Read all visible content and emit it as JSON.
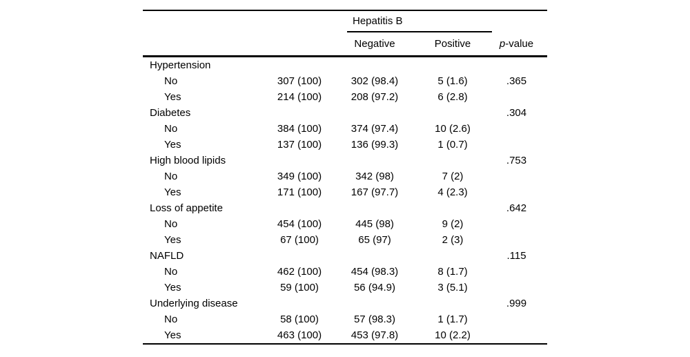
{
  "table": {
    "group_header": "Hepatitis B",
    "col_headers": {
      "negative": "Negative",
      "positive": "Positive"
    },
    "p_header": {
      "italic": "p",
      "rest": "-value"
    },
    "rows": [
      {
        "label": "Hypertension",
        "indent": false,
        "total": "",
        "negative": "",
        "positive": "",
        "p": ""
      },
      {
        "label": "No",
        "indent": true,
        "total": "307 (100)",
        "negative": "302 (98.4)",
        "positive": "5 (1.6)",
        "p": ".365"
      },
      {
        "label": "Yes",
        "indent": true,
        "total": "214 (100)",
        "negative": "208 (97.2)",
        "positive": "6 (2.8)",
        "p": ""
      },
      {
        "label": "Diabetes",
        "indent": false,
        "total": "",
        "negative": "",
        "positive": "",
        "p": ".304"
      },
      {
        "label": "No",
        "indent": true,
        "total": "384 (100)",
        "negative": "374 (97.4)",
        "positive": "10 (2.6)",
        "p": ""
      },
      {
        "label": "Yes",
        "indent": true,
        "total": "137 (100)",
        "negative": "136 (99.3)",
        "positive": "1 (0.7)",
        "p": ""
      },
      {
        "label": "High blood lipids",
        "indent": false,
        "total": "",
        "negative": "",
        "positive": "",
        "p": ".753"
      },
      {
        "label": "No",
        "indent": true,
        "total": "349 (100)",
        "negative": "342 (98)",
        "positive": "7 (2)",
        "p": ""
      },
      {
        "label": "Yes",
        "indent": true,
        "total": "171 (100)",
        "negative": "167 (97.7)",
        "positive": "4 (2.3)",
        "p": ""
      },
      {
        "label": "Loss of appetite",
        "indent": false,
        "total": "",
        "negative": "",
        "positive": "",
        "p": ".642"
      },
      {
        "label": "No",
        "indent": true,
        "total": "454 (100)",
        "negative": "445 (98)",
        "positive": "9 (2)",
        "p": ""
      },
      {
        "label": "Yes",
        "indent": true,
        "total": "67 (100)",
        "negative": "65 (97)",
        "positive": "2 (3)",
        "p": ""
      },
      {
        "label": "NAFLD",
        "indent": false,
        "total": "",
        "negative": "",
        "positive": "",
        "p": ".115"
      },
      {
        "label": "No",
        "indent": true,
        "total": "462 (100)",
        "negative": "454 (98.3)",
        "positive": "8 (1.7)",
        "p": ""
      },
      {
        "label": "Yes",
        "indent": true,
        "total": "59 (100)",
        "negative": "56 (94.9)",
        "positive": "3 (5.1)",
        "p": ""
      },
      {
        "label": "Underlying disease",
        "indent": false,
        "total": "",
        "negative": "",
        "positive": "",
        "p": ".999"
      },
      {
        "label": "No",
        "indent": true,
        "total": "58 (100)",
        "negative": "57 (98.3)",
        "positive": "1 (1.7)",
        "p": ""
      },
      {
        "label": "Yes",
        "indent": true,
        "total": "463 (100)",
        "negative": "453 (97.8)",
        "positive": "10 (2.2)",
        "p": ""
      }
    ]
  }
}
